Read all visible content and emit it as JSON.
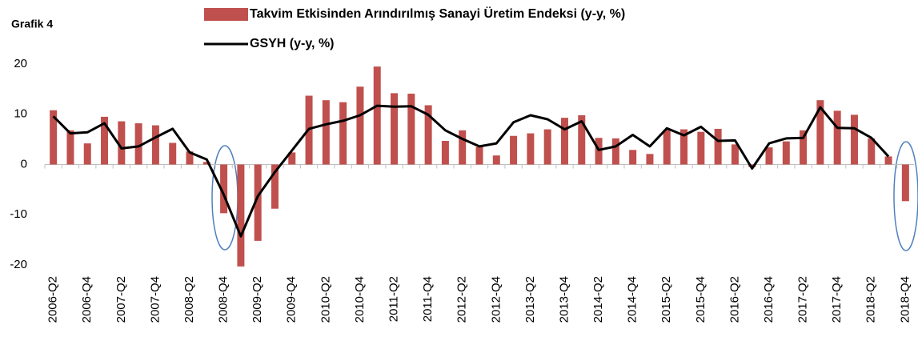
{
  "chart_data": {
    "type": "bar-line",
    "title": "Grafik 4",
    "categories": [
      "2006-Q2",
      null,
      "2006-Q4",
      null,
      "2007-Q2",
      null,
      "2007-Q4",
      null,
      "2008-Q2",
      null,
      "2008-Q4",
      null,
      "2009-Q2",
      null,
      "2009-Q4",
      null,
      "2010-Q2",
      null,
      "2010-Q4",
      null,
      "2011-Q2",
      null,
      "2011-Q4",
      null,
      "2012-Q2",
      null,
      "2012-Q4",
      null,
      "2013-Q2",
      null,
      "2013-Q4",
      null,
      "2014-Q2",
      null,
      "2014-Q4",
      null,
      "2015-Q2",
      null,
      "2015-Q4",
      null,
      "2016-Q2",
      null,
      "2016-Q4",
      null,
      "2017-Q2",
      null,
      "2017-Q4",
      null,
      "2018-Q2",
      null,
      "2018-Q4"
    ],
    "series": [
      {
        "name": "Takvim Etkisinden Arındırılmış Sanayi Üretim Endeksi (y-y, %)",
        "type": "bar",
        "color": "#c0504d",
        "values": [
          10.8,
          6.8,
          4.2,
          9.5,
          8.6,
          8.2,
          7.8,
          4.3,
          2.6,
          0.5,
          -9.7,
          -20.3,
          -15.2,
          -8.8,
          2.4,
          13.7,
          12.8,
          12.4,
          15.5,
          19.5,
          14.2,
          14.1,
          11.8,
          4.7,
          6.8,
          3.5,
          1.8,
          5.7,
          6.2,
          7.0,
          9.3,
          9.8,
          5.3,
          5.2,
          2.9,
          2.1,
          6.9,
          7.0,
          6.5,
          7.1,
          4.0,
          -0.5,
          3.4,
          4.6,
          6.8,
          12.8,
          10.7,
          9.9,
          5.2,
          1.6,
          -7.3
        ]
      },
      {
        "name": "GSYH (y-y, %)",
        "type": "line",
        "color": "#000000",
        "values": [
          9.6,
          6.2,
          6.4,
          8.2,
          3.2,
          3.6,
          5.4,
          7.1,
          2.4,
          1.0,
          -6.0,
          -14.3,
          -6.3,
          -1.5,
          2.8,
          7.1,
          8.0,
          8.7,
          9.8,
          11.7,
          11.5,
          11.6,
          9.9,
          6.8,
          5.1,
          3.6,
          4.2,
          8.4,
          9.8,
          9.0,
          7.0,
          8.6,
          2.9,
          3.6,
          5.9,
          3.6,
          7.2,
          5.8,
          7.5,
          4.7,
          4.8,
          -0.8,
          4.2,
          5.2,
          5.3,
          11.4,
          7.3,
          7.2,
          5.3,
          1.6,
          null
        ]
      }
    ],
    "ylim": [
      -20,
      20
    ],
    "yticks": [
      -20,
      -10,
      0,
      10,
      20
    ],
    "grid": false,
    "legend": "top"
  }
}
